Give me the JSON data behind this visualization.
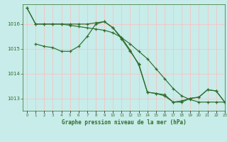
{
  "bg_color": "#c8ece9",
  "grid_color": "#f0c8c8",
  "line_color": "#2d6e2d",
  "marker_color": "#2d6e2d",
  "xlabel": "Graphe pression niveau de la mer (hPa)",
  "xlabel_color": "#2d6e2d",
  "xlim": [
    -0.5,
    23
  ],
  "ylim": [
    1012.5,
    1016.8
  ],
  "yticks": [
    1013,
    1014,
    1015,
    1016
  ],
  "xticks": [
    0,
    1,
    2,
    3,
    4,
    5,
    6,
    7,
    8,
    9,
    10,
    11,
    12,
    13,
    14,
    15,
    16,
    17,
    18,
    19,
    20,
    21,
    22,
    23
  ],
  "series": [
    {
      "x": [
        0,
        1,
        2,
        3,
        4,
        5,
        6,
        7,
        8,
        9,
        10,
        11,
        12,
        13,
        14,
        15,
        16,
        17,
        18,
        19,
        20,
        21,
        22,
        23
      ],
      "y": [
        1016.65,
        1016.0,
        1016.0,
        1016.0,
        1016.0,
        1015.95,
        1015.9,
        1015.85,
        1015.8,
        1015.75,
        1015.65,
        1015.45,
        1015.2,
        1014.9,
        1014.6,
        1014.2,
        1013.8,
        1013.4,
        1013.1,
        1012.95,
        1012.85,
        1012.85,
        1012.85,
        1012.85
      ]
    },
    {
      "x": [
        0,
        1,
        2,
        3,
        4,
        5,
        6,
        7,
        8,
        9,
        10,
        11,
        12,
        13,
        14,
        15,
        16,
        17,
        18,
        19,
        20,
        21,
        22,
        23
      ],
      "y": [
        1016.65,
        1016.0,
        1016.0,
        1016.0,
        1016.0,
        1016.0,
        1016.0,
        1016.0,
        1016.05,
        1016.1,
        1015.85,
        1015.45,
        1014.95,
        1014.35,
        1013.25,
        1013.2,
        1013.15,
        1012.85,
        1012.85,
        1013.0,
        1013.05,
        1013.35,
        1013.3,
        1012.85
      ]
    },
    {
      "x": [
        1,
        2,
        3,
        4,
        5,
        6,
        7,
        8,
        9,
        10,
        11,
        12,
        13,
        14,
        15,
        16,
        17,
        18,
        19,
        20,
        21,
        22,
        23
      ],
      "y": [
        1015.2,
        1015.1,
        1015.05,
        1014.9,
        1014.9,
        1015.1,
        1015.5,
        1016.0,
        1016.1,
        1015.85,
        1015.4,
        1014.9,
        1014.4,
        1013.25,
        1013.2,
        1013.1,
        1012.85,
        1012.9,
        1013.0,
        1013.05,
        1013.35,
        1013.3,
        1012.85
      ]
    }
  ]
}
